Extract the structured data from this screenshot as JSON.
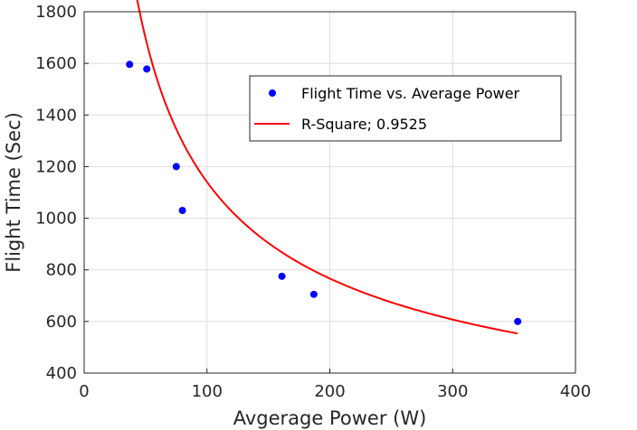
{
  "chart_data": {
    "type": "scatter",
    "title": "",
    "xlabel": "Avgerage Power (W)",
    "ylabel": "Flight Time (Sec)",
    "xlim": [
      0,
      400
    ],
    "ylim": [
      400,
      1800
    ],
    "xticks": [
      0,
      100,
      200,
      300,
      400
    ],
    "yticks": [
      400,
      600,
      800,
      1000,
      1200,
      1400,
      1600,
      1800
    ],
    "grid": true,
    "legend_position": "top-right",
    "series": [
      {
        "name": "Flight Time vs. Average Power",
        "kind": "scatter",
        "color": "#0000ff",
        "x": [
          37,
          51,
          75,
          80,
          161,
          187,
          353
        ],
        "y": [
          1596,
          1578,
          1200,
          1030,
          775,
          705,
          600
        ]
      },
      {
        "name": "R-Square; 0.9525",
        "kind": "line",
        "color": "#ff0000",
        "fit": {
          "model": "power",
          "a": 16000,
          "b": -0.5735
        },
        "x_range": [
          37,
          353
        ]
      }
    ]
  }
}
